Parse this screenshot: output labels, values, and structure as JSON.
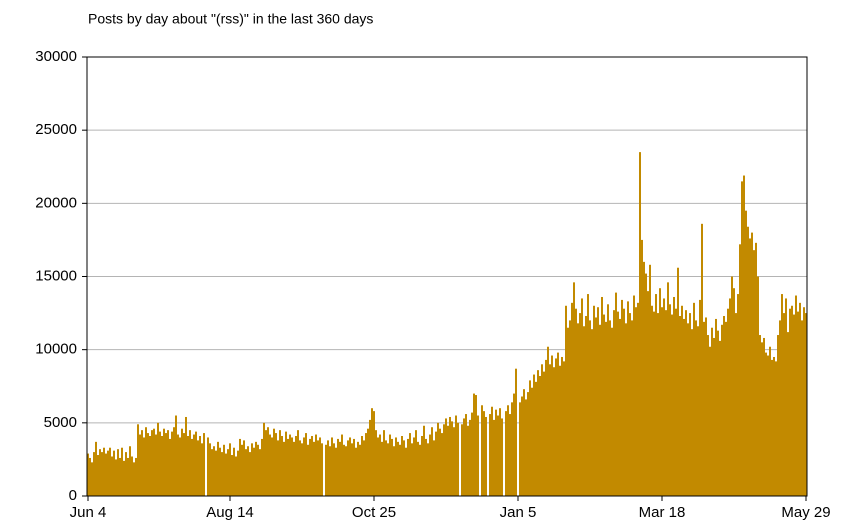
{
  "chart_data": {
    "type": "bar",
    "title": "Posts by day about \"(rss)\" in the last 360 days",
    "color": "#c28a00",
    "grid": true,
    "ylim": [
      0,
      30000
    ],
    "yticks": [
      0,
      5000,
      10000,
      15000,
      20000,
      25000,
      30000
    ],
    "categories": [
      "Jun 4",
      null,
      null,
      null,
      null,
      null,
      null,
      null,
      null,
      null,
      null,
      null,
      null,
      null,
      null,
      null,
      null,
      null,
      null,
      null,
      null,
      null,
      null,
      null,
      null,
      null,
      null,
      null,
      null,
      null,
      null,
      null,
      null,
      null,
      null,
      null,
      null,
      null,
      null,
      null,
      null,
      null,
      null,
      null,
      null,
      null,
      null,
      null,
      null,
      null,
      null,
      null,
      null,
      null,
      null,
      null,
      null,
      null,
      null,
      null,
      null,
      null,
      null,
      null,
      null,
      null,
      null,
      null,
      null,
      null,
      null,
      "Aug 14",
      null,
      null,
      null,
      null,
      null,
      null,
      null,
      null,
      null,
      null,
      null,
      null,
      null,
      null,
      null,
      null,
      null,
      null,
      null,
      null,
      null,
      null,
      null,
      null,
      null,
      null,
      null,
      null,
      null,
      null,
      null,
      null,
      null,
      null,
      null,
      null,
      null,
      null,
      null,
      null,
      null,
      null,
      null,
      null,
      null,
      null,
      null,
      null,
      null,
      null,
      null,
      null,
      null,
      null,
      null,
      null,
      null,
      null,
      null,
      null,
      null,
      null,
      null,
      null,
      null,
      null,
      null,
      null,
      null,
      null,
      null,
      "Oct 25",
      null,
      null,
      null,
      null,
      null,
      null,
      null,
      null,
      null,
      null,
      null,
      null,
      null,
      null,
      null,
      null,
      null,
      null,
      null,
      null,
      null,
      null,
      null,
      null,
      null,
      null,
      null,
      null,
      null,
      null,
      null,
      null,
      null,
      null,
      null,
      null,
      null,
      null,
      null,
      null,
      null,
      null,
      null,
      null,
      null,
      null,
      null,
      null,
      null,
      null,
      null,
      null,
      null,
      null,
      null,
      null,
      null,
      null,
      null,
      null,
      null,
      null,
      null,
      null,
      null,
      null,
      null,
      null,
      null,
      null,
      null,
      "Jan 5",
      null,
      null,
      null,
      null,
      null,
      null,
      null,
      null,
      null,
      null,
      null,
      null,
      null,
      null,
      null,
      null,
      null,
      null,
      null,
      null,
      null,
      null,
      null,
      null,
      null,
      null,
      null,
      null,
      null,
      null,
      null,
      null,
      null,
      null,
      null,
      null,
      null,
      null,
      null,
      null,
      null,
      null,
      null,
      null,
      null,
      null,
      null,
      null,
      null,
      null,
      null,
      null,
      null,
      null,
      null,
      null,
      null,
      null,
      null,
      null,
      null,
      null,
      null,
      null,
      null,
      null,
      null,
      null,
      null,
      null,
      null,
      "Mar 18",
      null,
      null,
      null,
      null,
      null,
      null,
      null,
      null,
      null,
      null,
      null,
      null,
      null,
      null,
      null,
      null,
      null,
      null,
      null,
      null,
      null,
      null,
      null,
      null,
      null,
      null,
      null,
      null,
      null,
      null,
      null,
      null,
      null,
      null,
      null,
      null,
      null,
      null,
      null,
      null,
      null,
      null,
      null,
      null,
      null,
      null,
      null,
      null,
      null,
      null,
      null,
      null,
      null,
      null,
      null,
      null,
      null,
      null,
      null,
      null,
      null,
      null,
      null,
      null,
      null,
      null,
      null,
      null,
      null,
      null,
      null,
      "May 29"
    ],
    "values": [
      2900,
      2600,
      2300,
      3000,
      3700,
      2800,
      3200,
      3000,
      3300,
      2900,
      3100,
      3300,
      2700,
      3100,
      2500,
      3200,
      2600,
      3300,
      2400,
      3000,
      2600,
      3400,
      2700,
      2300,
      2600,
      4900,
      4200,
      4500,
      4000,
      4700,
      4300,
      4100,
      4500,
      4600,
      4200,
      5000,
      4400,
      4100,
      4600,
      4300,
      4500,
      3900,
      4400,
      4700,
      5500,
      4200,
      4000,
      4600,
      4300,
      5400,
      4100,
      4500,
      3900,
      4200,
      4400,
      3800,
      4100,
      3600,
      4300,
      0,
      4000,
      3600,
      3200,
      3400,
      3100,
      3700,
      3300,
      3000,
      3500,
      2900,
      3200,
      3600,
      2800,
      3300,
      2700,
      3100,
      3900,
      3500,
      3800,
      3200,
      3400,
      3000,
      3600,
      3300,
      3700,
      3500,
      3200,
      3900,
      5000,
      4500,
      4700,
      4200,
      4000,
      4600,
      4300,
      3800,
      4500,
      4100,
      3700,
      4400,
      3900,
      4200,
      4000,
      3700,
      4100,
      4500,
      3800,
      3600,
      4000,
      4300,
      3500,
      3900,
      4100,
      3700,
      4200,
      3800,
      4000,
      3600,
      0,
      3500,
      3800,
      3400,
      4000,
      3600,
      3300,
      3900,
      3700,
      4200,
      3500,
      3400,
      3800,
      4000,
      3600,
      3900,
      3300,
      3700,
      3500,
      4100,
      3800,
      4300,
      4600,
      5200,
      6000,
      5800,
      4500,
      4000,
      4200,
      3700,
      4500,
      3800,
      3600,
      4200,
      3900,
      3400,
      4000,
      3700,
      3500,
      4100,
      3800,
      3300,
      3900,
      4300,
      3600,
      4000,
      4500,
      3700,
      3500,
      4100,
      4800,
      3900,
      3600,
      4200,
      4700,
      3800,
      4400,
      5000,
      4600,
      4300,
      4900,
      5300,
      4800,
      5400,
      5100,
      4700,
      5500,
      5000,
      0,
      4900,
      5300,
      5600,
      4800,
      5200,
      5700,
      7000,
      6900,
      5500,
      0,
      6200,
      5800,
      5400,
      0,
      5600,
      6100,
      5200,
      5900,
      5500,
      6000,
      5300,
      0,
      5800,
      6200,
      5600,
      6400,
      7000,
      8700,
      0,
      6400,
      6800,
      7300,
      6600,
      7100,
      7900,
      7400,
      8300,
      7800,
      8600,
      8200,
      9000,
      8500,
      9300,
      10200,
      9000,
      9600,
      8800,
      9400,
      9800,
      8900,
      9500,
      9200,
      13000,
      11500,
      12000,
      13200,
      14600,
      12800,
      11800,
      12500,
      13500,
      11600,
      12300,
      13800,
      12000,
      11400,
      13000,
      12200,
      12900,
      11700,
      13600,
      12400,
      11900,
      13100,
      12000,
      11500,
      12700,
      13900,
      12600,
      12100,
      13400,
      12800,
      11800,
      13300,
      12500,
      12000,
      13700,
      12900,
      13200,
      23500,
      17500,
      16000,
      15200,
      14000,
      15800,
      13000,
      12600,
      13800,
      12500,
      14200,
      12900,
      13500,
      12700,
      14600,
      13100,
      12400,
      13600,
      12800,
      15600,
      12300,
      13000,
      12100,
      12700,
      11800,
      12500,
      11400,
      13200,
      12000,
      11600,
      13400,
      18600,
      11900,
      12200,
      11000,
      10200,
      11500,
      10800,
      12100,
      11300,
      10600,
      11700,
      12300,
      11900,
      12800,
      13500,
      15000,
      14200,
      12500,
      13800,
      17200,
      21500,
      21900,
      19500,
      18400,
      17600,
      18000,
      16800,
      17300,
      15000,
      11000,
      10500,
      10800,
      9800,
      9600,
      10200,
      9300,
      9500,
      9200,
      11000,
      12000,
      13800,
      12500,
      13500,
      11200,
      12800,
      13000,
      12400,
      13700,
      12600,
      13200,
      12000,
      12900,
      12500
    ]
  }
}
